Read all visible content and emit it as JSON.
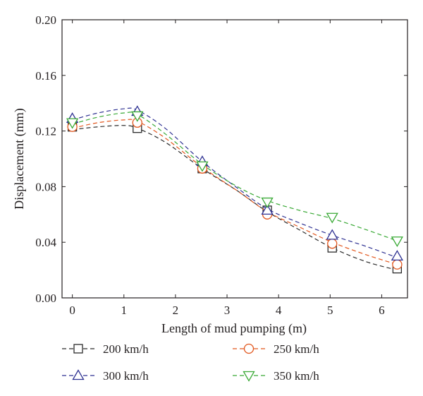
{
  "chart_data": {
    "type": "line",
    "title": "",
    "xlabel": "Length of mud pumping (m)",
    "ylabel": "Displacement (mm)",
    "xlim": [
      -0.2,
      6.5
    ],
    "ylim": [
      0.0,
      0.2
    ],
    "x_ticks": [
      0,
      1,
      2,
      3,
      4,
      5,
      6
    ],
    "x_tick_labels": [
      "0",
      "1",
      "2",
      "3",
      "4",
      "5",
      "6"
    ],
    "y_ticks": [
      0.0,
      0.04,
      0.08,
      0.12,
      0.16,
      0.2
    ],
    "y_tick_labels": [
      "0.00",
      "0.04",
      "0.08",
      "0.12",
      "0.16",
      "0.20"
    ],
    "grid": false,
    "legend_placement": "bottom",
    "x": [
      0,
      1.26,
      2.52,
      3.78,
      5.04,
      6.3
    ],
    "series": [
      {
        "name": "200 km/h",
        "marker": "square",
        "color": "#2b2b2b",
        "values": [
          0.123,
          0.122,
          0.093,
          0.063,
          0.036,
          0.021
        ],
        "curve": [
          [
            0,
            0.121
          ],
          [
            0.5,
            0.123
          ],
          [
            1,
            0.124
          ],
          [
            1.26,
            0.122
          ],
          [
            1.8,
            0.112
          ],
          [
            2.52,
            0.093
          ],
          [
            3.2,
            0.077
          ],
          [
            3.78,
            0.062
          ],
          [
            4.4,
            0.049
          ],
          [
            5.04,
            0.036
          ],
          [
            5.7,
            0.026
          ],
          [
            6.3,
            0.02
          ]
        ]
      },
      {
        "name": "250 km/h",
        "marker": "circle",
        "color": "#e2571e",
        "values": [
          0.123,
          0.126,
          0.093,
          0.06,
          0.039,
          0.024
        ],
        "curve": [
          [
            0,
            0.122
          ],
          [
            0.5,
            0.126
          ],
          [
            1,
            0.128
          ],
          [
            1.26,
            0.127
          ],
          [
            1.8,
            0.115
          ],
          [
            2.52,
            0.094
          ],
          [
            3.2,
            0.077
          ],
          [
            3.78,
            0.062
          ],
          [
            4.4,
            0.051
          ],
          [
            5.04,
            0.04
          ],
          [
            5.7,
            0.031
          ],
          [
            6.3,
            0.024
          ]
        ]
      },
      {
        "name": "300 km/h",
        "marker": "triangle-up",
        "color": "#2e3192",
        "values": [
          0.129,
          0.134,
          0.098,
          0.063,
          0.045,
          0.03
        ],
        "curve": [
          [
            0,
            0.128
          ],
          [
            0.5,
            0.133
          ],
          [
            1,
            0.136
          ],
          [
            1.26,
            0.135
          ],
          [
            1.8,
            0.122
          ],
          [
            2.52,
            0.098
          ],
          [
            3.2,
            0.079
          ],
          [
            3.78,
            0.064
          ],
          [
            4.4,
            0.054
          ],
          [
            5.04,
            0.045
          ],
          [
            5.7,
            0.037
          ],
          [
            6.3,
            0.029
          ]
        ]
      },
      {
        "name": "350 km/h",
        "marker": "triangle-down",
        "color": "#39a935",
        "values": [
          0.126,
          0.131,
          0.095,
          0.069,
          0.058,
          0.041
        ],
        "curve": [
          [
            0,
            0.125
          ],
          [
            0.5,
            0.13
          ],
          [
            1,
            0.133
          ],
          [
            1.26,
            0.132
          ],
          [
            1.8,
            0.118
          ],
          [
            2.52,
            0.096
          ],
          [
            3.2,
            0.08
          ],
          [
            3.78,
            0.07
          ],
          [
            4.4,
            0.063
          ],
          [
            5.04,
            0.057
          ],
          [
            5.7,
            0.049
          ],
          [
            6.3,
            0.041
          ]
        ]
      }
    ]
  }
}
